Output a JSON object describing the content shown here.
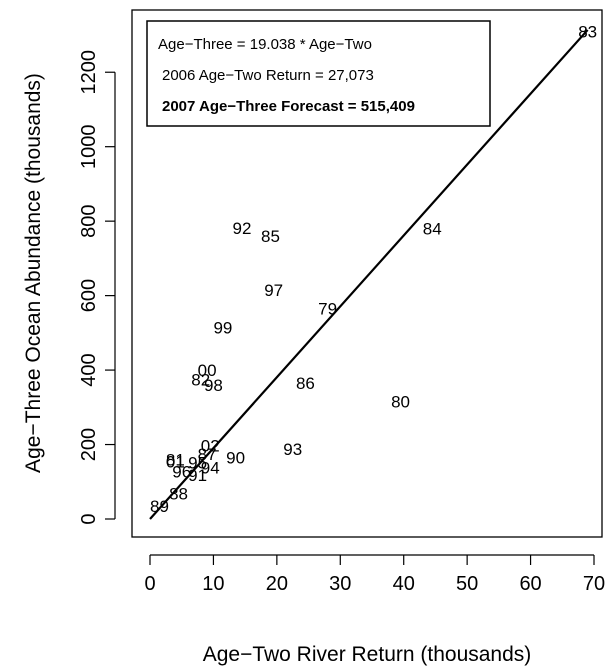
{
  "chart_data": {
    "type": "scatter",
    "title": "",
    "xlabel": "Age−Two River Return (thousands)",
    "ylabel": "Age−Three Ocean Abundance (thousands)",
    "xlim": [
      0,
      70
    ],
    "ylim": [
      0,
      1300
    ],
    "x_ticks": [
      "0",
      "10",
      "20",
      "30",
      "40",
      "50",
      "60",
      "70"
    ],
    "y_ticks": [
      "0",
      "200",
      "400",
      "600",
      "800",
      "1000",
      "1200"
    ],
    "x_tick_values": [
      0,
      10,
      20,
      30,
      40,
      50,
      60,
      70
    ],
    "y_tick_values": [
      0,
      200,
      400,
      600,
      800,
      1000,
      1200
    ],
    "grid": false,
    "marker": "text-labels",
    "points": [
      {
        "label": "83",
        "x": 69,
        "y": 1310
      },
      {
        "label": "84",
        "x": 44.5,
        "y": 780
      },
      {
        "label": "92",
        "x": 14.5,
        "y": 782
      },
      {
        "label": "85",
        "x": 19,
        "y": 760
      },
      {
        "label": "97",
        "x": 19.5,
        "y": 615
      },
      {
        "label": "79",
        "x": 28,
        "y": 565
      },
      {
        "label": "99",
        "x": 11.5,
        "y": 515
      },
      {
        "label": "00",
        "x": 9,
        "y": 400
      },
      {
        "label": "82",
        "x": 8,
        "y": 375
      },
      {
        "label": "98",
        "x": 10,
        "y": 360
      },
      {
        "label": "86",
        "x": 24.5,
        "y": 365
      },
      {
        "label": "80",
        "x": 39.5,
        "y": 315
      },
      {
        "label": "93",
        "x": 22.5,
        "y": 188
      },
      {
        "label": "02",
        "x": 9.5,
        "y": 198
      },
      {
        "label": "87",
        "x": 9,
        "y": 175
      },
      {
        "label": "90",
        "x": 13.5,
        "y": 165
      },
      {
        "label": "81",
        "x": 4,
        "y": 160
      },
      {
        "label": "01",
        "x": 4,
        "y": 155
      },
      {
        "label": "95",
        "x": 7.5,
        "y": 152
      },
      {
        "label": "94",
        "x": 9.5,
        "y": 138
      },
      {
        "label": "96",
        "x": 5,
        "y": 128
      },
      {
        "label": "91",
        "x": 7.5,
        "y": 118
      },
      {
        "label": "88",
        "x": 4.5,
        "y": 68
      },
      {
        "label": "89",
        "x": 1.5,
        "y": 35
      }
    ],
    "regression": {
      "slope": 19.038,
      "intercept": 0,
      "x_range": [
        0,
        69
      ]
    },
    "legend_position": "top-left",
    "legend_lines": [
      "Age−Three = 19.038 * Age−Two",
      "2006 Age−Two Return = 27,073",
      "2007 Age−Three Forecast = 515,409"
    ]
  }
}
